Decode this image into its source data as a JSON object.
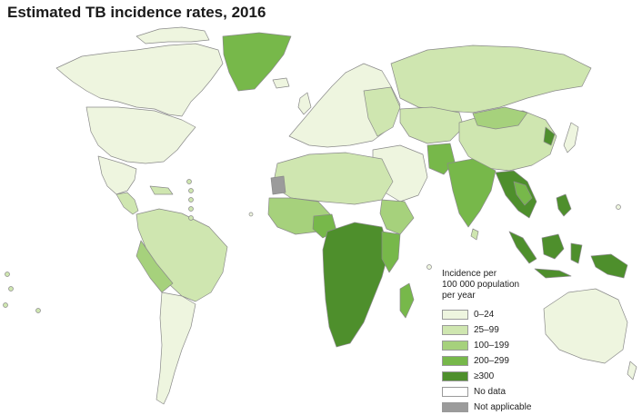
{
  "title": "Estimated TB incidence rates, 2016",
  "colors": {
    "c0": "#eef5df",
    "c1": "#cfe6b0",
    "c2": "#a6d17c",
    "c3": "#77b84a",
    "c4": "#4e8f2c",
    "nodata": "#ffffff",
    "na": "#9b9b9b",
    "ocean": "#ffffff",
    "border": "#8a8a8a"
  },
  "legend": {
    "title_lines": [
      "Incidence per",
      "100 000 population",
      "per year"
    ],
    "items": [
      {
        "label": "0–24",
        "color_key": "c0"
      },
      {
        "label": "25–99",
        "color_key": "c1"
      },
      {
        "label": "100–199",
        "color_key": "c2"
      },
      {
        "label": "200–299",
        "color_key": "c3"
      },
      {
        "label": "≥300",
        "color_key": "c4"
      },
      {
        "label": "No data",
        "color_key": "nodata"
      },
      {
        "label": "Not applicable",
        "color_key": "na"
      }
    ]
  }
}
